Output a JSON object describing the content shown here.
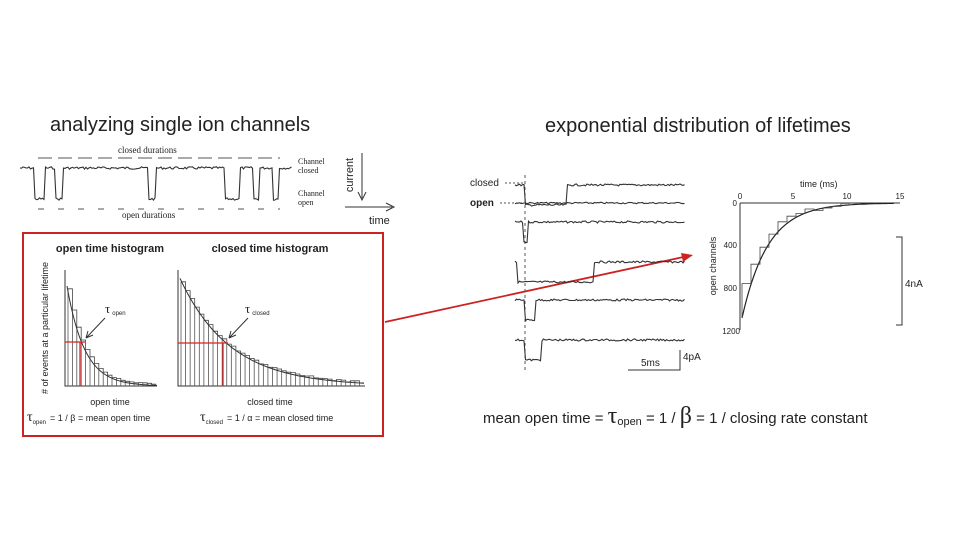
{
  "left": {
    "title": "analyzing single ion channels",
    "trace": {
      "closed_durations": "closed durations",
      "open_durations": "open durations",
      "channel_closed": [
        "Channel",
        "closed"
      ],
      "channel_open": [
        "Channel",
        "open"
      ],
      "current": "current",
      "time": "time"
    },
    "histograms": {
      "open_title": "open time histogram",
      "closed_title": "closed time histogram",
      "y_label": "# of events at a particular lifetime",
      "tau_open": {
        "symbol": "τ",
        "sub": "open"
      },
      "tau_closed": {
        "symbol": "τ",
        "sub": "closed"
      },
      "open_x_label": "open time",
      "closed_x_label": "closed time",
      "open_formula": {
        "symbol": "τ",
        "sub": "open",
        "rest": "= 1 / β = mean open time"
      },
      "closed_formula": {
        "symbol": "τ",
        "sub": "closed",
        "rest": "= 1 / α = mean closed time"
      }
    }
  },
  "right": {
    "title": "exponential distribution of lifetimes",
    "traces": {
      "closed": "closed",
      "open": "open",
      "time_scale": "5ms",
      "current_scale": "4pA"
    },
    "plot": {
      "x_label": "time (ms)",
      "x_ticks": [
        "0",
        "5",
        "10",
        "15"
      ],
      "y_label": "open channels",
      "y_ticks": [
        "0",
        "400",
        "800",
        "1200"
      ],
      "scale": "4nA"
    },
    "formula": {
      "lead": "mean open time = ",
      "tau": "τ",
      "sub": "open",
      "mid": " = 1 / ",
      "beta": "β",
      "tail": " = 1 / closing rate constant"
    }
  }
}
